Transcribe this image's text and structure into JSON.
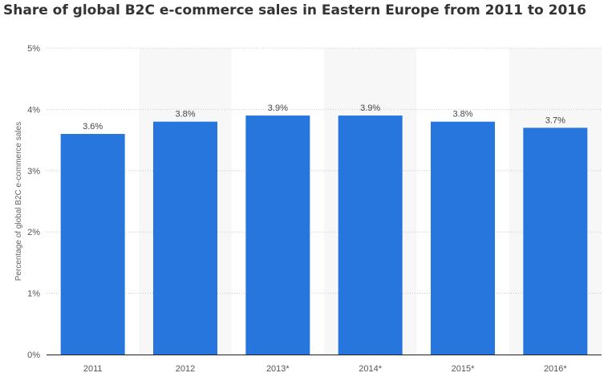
{
  "chart_data": {
    "type": "bar",
    "title": "Share of global B2C e-commerce sales in Eastern Europe from 2011 to 2016",
    "xlabel": "",
    "ylabel": "Percentage of global B2C e-commerce sales",
    "categories": [
      "2011",
      "2012",
      "2013*",
      "2014*",
      "2015*",
      "2016*"
    ],
    "values": [
      3.6,
      3.8,
      3.9,
      3.9,
      3.8,
      3.7
    ],
    "value_labels": [
      "3.6%",
      "3.8%",
      "3.9%",
      "3.9%",
      "3.8%",
      "3.7%"
    ],
    "y_ticks": [
      0,
      1,
      2,
      3,
      4,
      5
    ],
    "y_tick_labels": [
      "0%",
      "1%",
      "2%",
      "3%",
      "4%",
      "5%"
    ],
    "ylim": [
      0,
      5
    ],
    "grid": true,
    "legend": "none",
    "colors": {
      "bar": "#2776dd",
      "band": "#f7f7f7",
      "grid": "#c8c8c8",
      "axis": "#222222"
    }
  }
}
